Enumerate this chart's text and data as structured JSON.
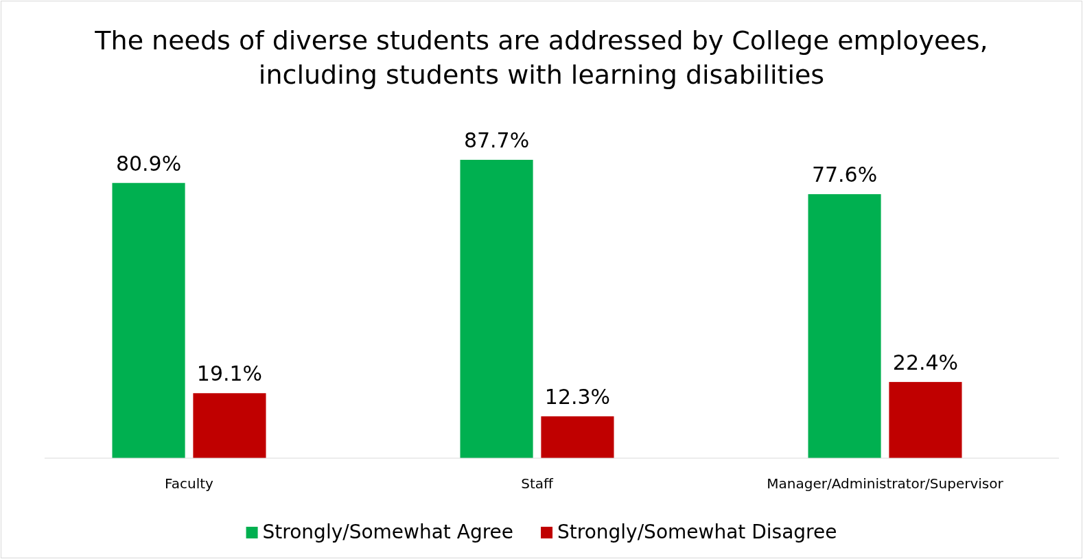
{
  "chart_data": {
    "type": "bar",
    "title": "The needs of diverse students are addressed by College employees, including students with learning disabilities",
    "categories": [
      "Faculty",
      "Staff",
      "Manager/Administrator/Supervisor"
    ],
    "series": [
      {
        "name": "Strongly/Somewhat Agree",
        "color": "#00b050",
        "values": [
          80.9,
          87.7,
          77.6
        ],
        "value_labels": [
          "80.9%",
          "87.7%",
          "77.6%"
        ]
      },
      {
        "name": "Strongly/Somewhat Disagree",
        "color": "#c00000",
        "values": [
          19.1,
          12.3,
          22.4
        ],
        "value_labels": [
          "19.1%",
          "12.3%",
          "22.4%"
        ]
      }
    ],
    "legend": "bottom"
  }
}
